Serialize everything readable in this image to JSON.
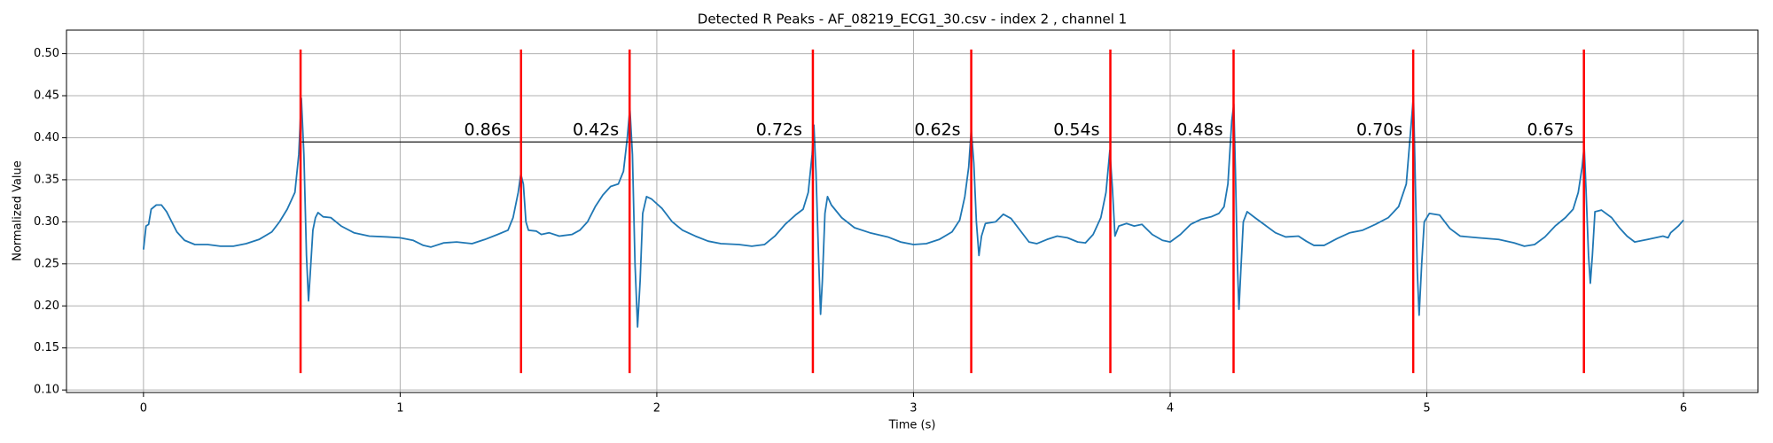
{
  "chart_data": {
    "type": "line",
    "title": "Detected R Peaks - AF_08219_ECG1_30.csv - index 2 , channel 1",
    "xlabel": "Time (s)",
    "ylabel": "Normalized Value",
    "xlim": [
      -0.3,
      6.29
    ],
    "ylim": [
      0.097,
      0.528
    ],
    "xticks": [
      0,
      1,
      2,
      3,
      4,
      5,
      6
    ],
    "yticks": [
      {
        "value": 0.1,
        "label": "0.10"
      },
      {
        "value": 0.15,
        "label": "0.15"
      },
      {
        "value": 0.2,
        "label": "0.20"
      },
      {
        "value": 0.25,
        "label": "0.25"
      },
      {
        "value": 0.3,
        "label": "0.30"
      },
      {
        "value": 0.35,
        "label": "0.35"
      },
      {
        "value": 0.4,
        "label": "0.40"
      },
      {
        "value": 0.45,
        "label": "0.45"
      },
      {
        "value": 0.5,
        "label": "0.50"
      }
    ],
    "grid": true,
    "x": [
      0,
      0.01,
      0.02,
      0.03,
      0.05,
      0.07,
      0.09,
      0.11,
      0.13,
      0.16,
      0.2,
      0.25,
      0.3,
      0.35,
      0.4,
      0.45,
      0.5,
      0.53,
      0.56,
      0.59,
      0.605,
      0.615,
      0.625,
      0.635,
      0.643,
      0.65,
      0.66,
      0.67,
      0.68,
      0.7,
      0.73,
      0.77,
      0.82,
      0.88,
      0.95,
      1,
      1.05,
      1.09,
      1.12,
      1.17,
      1.22,
      1.28,
      1.33,
      1.38,
      1.42,
      1.44,
      1.46,
      1.47,
      1.48,
      1.49,
      1.5,
      1.53,
      1.55,
      1.58,
      1.62,
      1.67,
      1.7,
      1.73,
      1.76,
      1.79,
      1.82,
      1.85,
      1.87,
      1.885,
      1.895,
      1.905,
      1.915,
      1.925,
      1.935,
      1.945,
      1.96,
      1.98,
      2.02,
      2.06,
      2.1,
      2.15,
      2.2,
      2.25,
      2.32,
      2.37,
      2.42,
      2.46,
      2.5,
      2.54,
      2.57,
      2.59,
      2.605,
      2.612,
      2.62,
      2.63,
      2.638,
      2.645,
      2.655,
      2.665,
      2.68,
      2.72,
      2.77,
      2.83,
      2.9,
      2.95,
      3,
      3.05,
      3.1,
      3.15,
      3.18,
      3.2,
      3.215,
      3.225,
      3.235,
      3.245,
      3.255,
      3.265,
      3.28,
      3.32,
      3.35,
      3.38,
      3.42,
      3.45,
      3.48,
      3.52,
      3.56,
      3.6,
      3.64,
      3.67,
      3.7,
      3.73,
      3.75,
      3.765,
      3.775,
      3.785,
      3.8,
      3.83,
      3.86,
      3.89,
      3.93,
      3.97,
      4,
      4.04,
      4.08,
      4.12,
      4.16,
      4.19,
      4.21,
      4.225,
      4.24,
      4.248,
      4.255,
      4.262,
      4.268,
      4.275,
      4.285,
      4.3,
      4.33,
      4.37,
      4.41,
      4.45,
      4.5,
      4.53,
      4.56,
      4.6,
      4.65,
      4.7,
      4.75,
      4.8,
      4.85,
      4.89,
      4.92,
      4.94,
      4.948,
      4.955,
      4.963,
      4.97,
      4.98,
      4.99,
      5.01,
      5.05,
      5.09,
      5.13,
      5.2,
      5.28,
      5.34,
      5.38,
      5.42,
      5.46,
      5.5,
      5.54,
      5.57,
      5.59,
      5.605,
      5.613,
      5.62,
      5.63,
      5.637,
      5.645,
      5.655,
      5.68,
      5.72,
      5.75,
      5.78,
      5.81,
      5.86,
      5.92,
      5.94,
      5.95,
      5.98,
      6
    ],
    "series": [
      {
        "color": "#1f77b4",
        "values": [
          0.267,
          0.295,
          0.297,
          0.315,
          0.32,
          0.32,
          0.312,
          0.3,
          0.288,
          0.278,
          0.273,
          0.273,
          0.271,
          0.271,
          0.274,
          0.279,
          0.288,
          0.3,
          0.315,
          0.335,
          0.38,
          0.447,
          0.38,
          0.26,
          0.206,
          0.24,
          0.29,
          0.305,
          0.311,
          0.306,
          0.305,
          0.295,
          0.287,
          0.283,
          0.282,
          0.281,
          0.278,
          0.272,
          0.27,
          0.275,
          0.276,
          0.274,
          0.279,
          0.285,
          0.29,
          0.305,
          0.335,
          0.357,
          0.345,
          0.3,
          0.29,
          0.289,
          0.285,
          0.287,
          0.283,
          0.285,
          0.29,
          0.3,
          0.318,
          0.332,
          0.342,
          0.345,
          0.36,
          0.4,
          0.435,
          0.38,
          0.25,
          0.175,
          0.23,
          0.31,
          0.33,
          0.327,
          0.316,
          0.3,
          0.29,
          0.283,
          0.277,
          0.274,
          0.273,
          0.271,
          0.273,
          0.283,
          0.297,
          0.308,
          0.315,
          0.335,
          0.38,
          0.415,
          0.36,
          0.26,
          0.19,
          0.23,
          0.31,
          0.33,
          0.32,
          0.305,
          0.293,
          0.287,
          0.282,
          0.276,
          0.273,
          0.274,
          0.279,
          0.288,
          0.302,
          0.33,
          0.365,
          0.41,
          0.37,
          0.3,
          0.26,
          0.283,
          0.298,
          0.3,
          0.309,
          0.304,
          0.288,
          0.276,
          0.274,
          0.279,
          0.283,
          0.281,
          0.276,
          0.275,
          0.285,
          0.305,
          0.335,
          0.385,
          0.34,
          0.283,
          0.295,
          0.298,
          0.295,
          0.297,
          0.285,
          0.278,
          0.276,
          0.285,
          0.297,
          0.303,
          0.306,
          0.31,
          0.318,
          0.345,
          0.42,
          0.44,
          0.35,
          0.25,
          0.196,
          0.24,
          0.3,
          0.312,
          0.305,
          0.296,
          0.287,
          0.282,
          0.283,
          0.277,
          0.272,
          0.272,
          0.28,
          0.287,
          0.29,
          0.297,
          0.305,
          0.318,
          0.345,
          0.42,
          0.45,
          0.35,
          0.24,
          0.189,
          0.25,
          0.3,
          0.31,
          0.308,
          0.292,
          0.283,
          0.281,
          0.279,
          0.275,
          0.271,
          0.273,
          0.282,
          0.295,
          0.305,
          0.315,
          0.335,
          0.365,
          0.39,
          0.34,
          0.26,
          0.227,
          0.26,
          0.312,
          0.314,
          0.305,
          0.293,
          0.283,
          0.276,
          0.279,
          0.283,
          0.281,
          0.287,
          0.295,
          0.302
        ]
      }
    ],
    "peaks": [
      0.612,
      1.471,
      1.894,
      2.608,
      3.225,
      3.767,
      4.247,
      4.947,
      5.612
    ],
    "peak_color": "#ff0000",
    "peak_line": [
      0.12,
      0.505
    ],
    "interval_line_y": 0.395,
    "annotations": [
      "0.86s",
      "0.42s",
      "0.72s",
      "0.62s",
      "0.54s",
      "0.48s",
      "0.70s",
      "0.67s"
    ]
  }
}
